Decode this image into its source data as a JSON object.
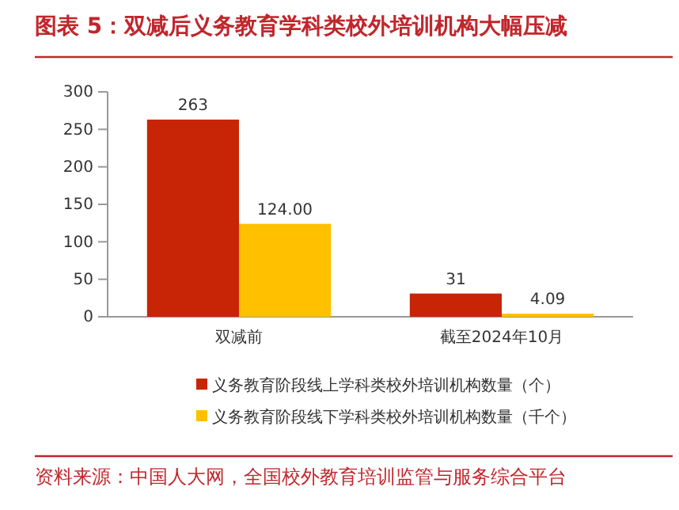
{
  "chart_data": {
    "type": "bar",
    "title": "图表 5：双减后义务教育学科类校外培训机构大幅压减",
    "categories": [
      "双减前",
      "截至2024年10月"
    ],
    "series": [
      {
        "name": "义务教育阶段线上学科类校外培训机构数量（个）",
        "color": "#c82506",
        "values": [
          263,
          31
        ],
        "value_labels": [
          "263",
          "31"
        ]
      },
      {
        "name": "义务教育阶段线下学科类校外培训机构数量（千个）",
        "color": "#ffc000",
        "values": [
          124.0,
          4.09
        ],
        "value_labels": [
          "124.00",
          "4.09"
        ]
      }
    ],
    "ylim": [
      0,
      300
    ],
    "yticks": [
      0,
      50,
      100,
      150,
      200,
      250,
      300
    ],
    "grid": false,
    "legend": "bottom",
    "annotations": [
      "资料来源：中国人大网，全国校外教育培训监管与服务综合平台"
    ]
  }
}
